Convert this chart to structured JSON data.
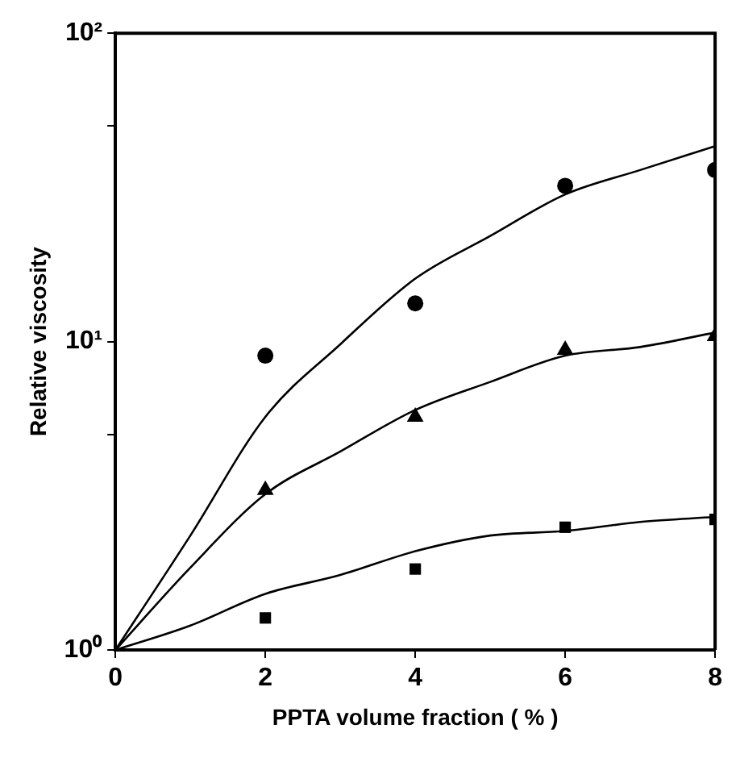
{
  "chart_data": {
    "type": "scatter",
    "xlabel": "PPTA volume fraction ( % )",
    "ylabel": "Relative viscosity",
    "log": "y",
    "xlim": [
      0,
      8
    ],
    "xticks": [
      0,
      2,
      4,
      6,
      8
    ],
    "ylim": [
      1,
      100
    ],
    "yticks": [
      {
        "value": 1,
        "label": "10⁰"
      },
      {
        "value": 5,
        "label": null
      },
      {
        "value": 10,
        "label": "10¹"
      },
      {
        "value": 50,
        "label": null
      },
      {
        "value": 100,
        "label": "10²"
      }
    ],
    "legend": false,
    "series": [
      {
        "type": "scatter",
        "marker": "circle",
        "color": "#000000",
        "x": [
          2,
          4,
          6,
          8
        ],
        "values": [
          9.0,
          13.3,
          32,
          36
        ]
      },
      {
        "type": "scatter",
        "marker": "triangle",
        "color": "#000000",
        "x": [
          2,
          4,
          6,
          8
        ],
        "values": [
          3.3,
          5.7,
          9.4,
          10.4
        ]
      },
      {
        "type": "scatter",
        "marker": "square",
        "color": "#000000",
        "x": [
          2,
          4,
          6,
          8
        ],
        "values": [
          1.27,
          1.83,
          2.5,
          2.65
        ]
      },
      {
        "type": "line",
        "marker": "none",
        "color": "#000000",
        "x": [
          0,
          1,
          2,
          3,
          4,
          5,
          6,
          7,
          8
        ],
        "values": [
          1,
          2.35,
          5.7,
          9.8,
          16,
          22,
          30,
          36,
          43
        ]
      },
      {
        "type": "line",
        "marker": "none",
        "color": "#000000",
        "x": [
          0,
          1,
          2,
          3,
          4,
          5,
          6,
          7,
          8
        ],
        "values": [
          1,
          1.85,
          3.2,
          4.4,
          6.0,
          7.4,
          9.0,
          9.6,
          10.7
        ]
      },
      {
        "type": "line",
        "marker": "none",
        "color": "#000000",
        "x": [
          0,
          1,
          2,
          3,
          4,
          5,
          6,
          7,
          8
        ],
        "values": [
          1,
          1.2,
          1.52,
          1.75,
          2.09,
          2.35,
          2.43,
          2.6,
          2.7
        ]
      }
    ]
  }
}
